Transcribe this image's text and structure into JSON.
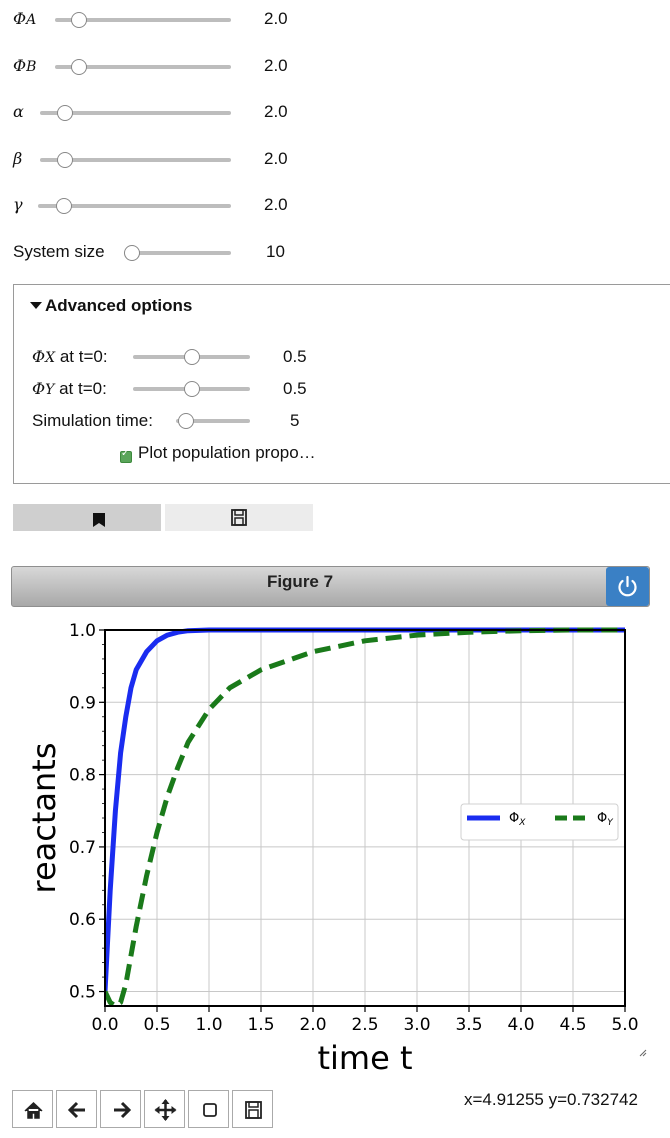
{
  "sliders": [
    {
      "label_main": "Φ",
      "label_sub": "A",
      "value": "2.0",
      "level": 0.1
    },
    {
      "label_main": "Φ",
      "label_sub": "B",
      "value": "2.0",
      "level": 0.1
    },
    {
      "label_main": "α",
      "label_sub": "",
      "value": "2.0",
      "level": 0.1
    },
    {
      "label_main": "β",
      "label_sub": "",
      "value": "2.0",
      "level": 0.1
    },
    {
      "label_main": "γ",
      "label_sub": "",
      "value": "2.0",
      "level": 0.1
    }
  ],
  "system_size": {
    "label": "System size",
    "value": "10",
    "level": 0.0
  },
  "advanced": {
    "title": "Advanced options",
    "phi_x": {
      "label_main": "Φ",
      "label_sub": "X",
      "label_rest": " at t=0:",
      "value": "0.5",
      "level": 0.5
    },
    "phi_y": {
      "label_main": "Φ",
      "label_sub": "Y",
      "label_rest": " at t=0:",
      "value": "0.5",
      "level": 0.5
    },
    "sim_time": {
      "label": "Simulation time:",
      "value": "5",
      "level": 0.1
    },
    "plot_checkbox": {
      "label": "Plot population propo…",
      "checked": true
    }
  },
  "buttons": {
    "bookmark_icon": "bookmark-icon",
    "save_icon": "save-icon"
  },
  "figure": {
    "title": "Figure 7",
    "power_icon": "power-icon"
  },
  "toolbar": {
    "home_icon": "home-icon",
    "back_icon": "arrow-left-icon",
    "forward_icon": "arrow-right-icon",
    "pan_icon": "move-icon",
    "zoom_icon": "square-icon",
    "save_icon": "save-icon",
    "coords": "x=4.91255 y=0.732742"
  },
  "colors": {
    "phi_x": "#1a2cf0",
    "phi_y": "#1a7a1a",
    "power": "#3a80c5"
  },
  "chart_data": {
    "type": "line",
    "xlabel": "time t",
    "ylabel": "reactants",
    "xlim": [
      0,
      5
    ],
    "ylim": [
      0.48,
      1.0
    ],
    "xticks": [
      "0.0",
      "0.5",
      "1.0",
      "1.5",
      "2.0",
      "2.5",
      "3.0",
      "3.5",
      "4.0",
      "4.5",
      "5.0"
    ],
    "yticks": [
      "0.5",
      "0.6",
      "0.7",
      "0.8",
      "0.9",
      "1.0"
    ],
    "grid": true,
    "legend": "center-right",
    "series": [
      {
        "name": "Φ",
        "name_sub": "X",
        "style": "solid",
        "x": [
          0,
          0.05,
          0.1,
          0.15,
          0.2,
          0.25,
          0.3,
          0.4,
          0.5,
          0.6,
          0.7,
          0.8,
          1.0,
          1.5,
          2,
          3,
          4,
          5
        ],
        "y": [
          0.5,
          0.64,
          0.75,
          0.83,
          0.88,
          0.92,
          0.945,
          0.97,
          0.985,
          0.993,
          0.997,
          0.999,
          1.0,
          1.0,
          1.0,
          1.0,
          1.0,
          1.0
        ]
      },
      {
        "name": "Φ",
        "name_sub": "Y",
        "style": "dashed",
        "x": [
          0,
          0.05,
          0.1,
          0.15,
          0.2,
          0.3,
          0.4,
          0.5,
          0.6,
          0.7,
          0.8,
          1.0,
          1.2,
          1.5,
          2,
          2.5,
          3,
          3.5,
          4,
          4.5,
          5
        ],
        "y": [
          0.5,
          0.485,
          0.48,
          0.485,
          0.51,
          0.59,
          0.66,
          0.72,
          0.77,
          0.81,
          0.845,
          0.89,
          0.92,
          0.945,
          0.97,
          0.985,
          0.993,
          0.997,
          0.999,
          1.0,
          1.0
        ]
      }
    ]
  }
}
